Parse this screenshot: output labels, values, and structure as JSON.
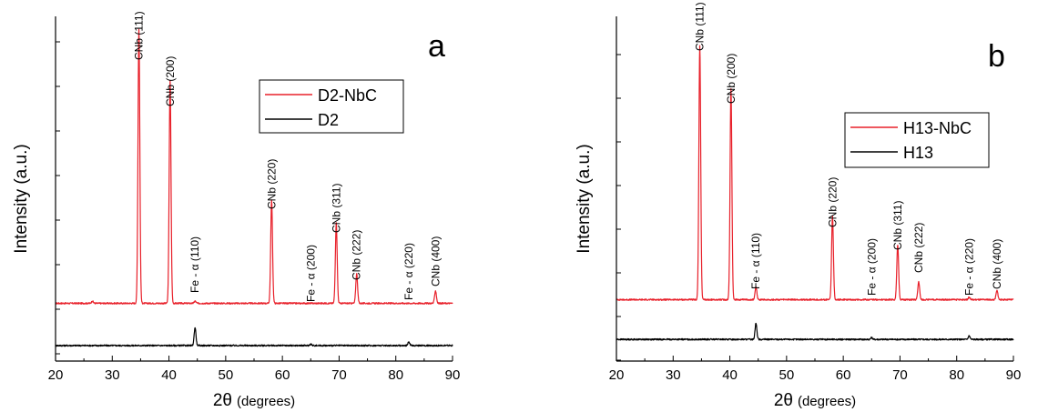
{
  "colors": {
    "coated": "#e8202a",
    "substrate": "#000000"
  },
  "chart_data": [
    {
      "type": "line",
      "panel_label": "a",
      "xlabel": {
        "symbol": "2θ",
        "unit": "(degrees)"
      },
      "ylabel": "Intensity (a.u.)",
      "xlim": [
        20,
        90
      ],
      "xticks": [
        "20",
        "30",
        "40",
        "50",
        "60",
        "70",
        "80",
        "90"
      ],
      "yticks_labeled": false,
      "legend": {
        "position": "top-right",
        "entries": [
          "D2-NbC",
          "D2"
        ]
      },
      "series": [
        {
          "name": "D2-NbC",
          "color": "#e8202a",
          "baseline": 0.16,
          "peaks": [
            {
              "x": 34.7,
              "height": 0.76
            },
            {
              "x": 40.2,
              "height": 0.615
            },
            {
              "x": 58.1,
              "height": 0.285
            },
            {
              "x": 69.5,
              "height": 0.222
            },
            {
              "x": 73.1,
              "height": 0.082
            },
            {
              "x": 87.0,
              "height": 0.035
            },
            {
              "x": 44.6,
              "height": 0.006
            },
            {
              "x": 26.5,
              "height": 0.006
            }
          ]
        },
        {
          "name": "D2",
          "color": "#000000",
          "baseline": 0.043,
          "peaks": [
            {
              "x": 44.6,
              "height": 0.05
            },
            {
              "x": 65.0,
              "height": 0.004
            },
            {
              "x": 82.3,
              "height": 0.01
            }
          ]
        }
      ],
      "annotations": [
        {
          "text": "CNb (111)",
          "x": 34.7
        },
        {
          "text": "CNb (200)",
          "x": 40.2
        },
        {
          "text": "Fe - α (110)",
          "x": 44.6
        },
        {
          "text": "CNb (220)",
          "x": 58.1
        },
        {
          "text": "Fe - α (200)",
          "x": 65.0
        },
        {
          "text": "CNb (311)",
          "x": 69.5
        },
        {
          "text": "CNb (222)",
          "x": 73.1
        },
        {
          "text": "Fe - α (220)",
          "x": 82.3
        },
        {
          "text": "CNb (400)",
          "x": 87.0
        }
      ]
    },
    {
      "type": "line",
      "panel_label": "b",
      "xlabel": {
        "symbol": "2θ",
        "unit": "(degrees)"
      },
      "ylabel": "Intensity (a.u.)",
      "xlim": [
        20,
        90
      ],
      "xticks": [
        "20",
        "30",
        "40",
        "50",
        "60",
        "70",
        "80",
        "90"
      ],
      "yticks_labeled": false,
      "legend": {
        "position": "top-right",
        "entries": [
          "H13-NbC",
          "H13"
        ]
      },
      "series": [
        {
          "name": "H13-NbC",
          "color": "#e8202a",
          "baseline": 0.17,
          "peaks": [
            {
              "x": 34.7,
              "height": 0.703
            },
            {
              "x": 40.2,
              "height": 0.585
            },
            {
              "x": 44.6,
              "height": 0.035
            },
            {
              "x": 58.1,
              "height": 0.23
            },
            {
              "x": 69.6,
              "height": 0.152
            },
            {
              "x": 73.3,
              "height": 0.05
            },
            {
              "x": 82.2,
              "height": 0.007
            },
            {
              "x": 87.1,
              "height": 0.025
            }
          ]
        },
        {
          "name": "H13",
          "color": "#000000",
          "baseline": 0.06,
          "peaks": [
            {
              "x": 44.6,
              "height": 0.045
            },
            {
              "x": 65.0,
              "height": 0.005
            },
            {
              "x": 82.2,
              "height": 0.01
            }
          ]
        }
      ],
      "annotations": [
        {
          "text": "CNb (111)",
          "x": 34.7
        },
        {
          "text": "CNb (200)",
          "x": 40.2
        },
        {
          "text": "Fe - α (110)",
          "x": 44.6
        },
        {
          "text": "CNb (220)",
          "x": 58.1
        },
        {
          "text": "Fe - α (200)",
          "x": 65.0
        },
        {
          "text": "CNb (311)",
          "x": 69.6
        },
        {
          "text": "CNb (222)",
          "x": 73.3
        },
        {
          "text": "Fe - α (220)",
          "x": 82.2
        },
        {
          "text": "CNb (400)",
          "x": 87.1
        }
      ]
    }
  ]
}
